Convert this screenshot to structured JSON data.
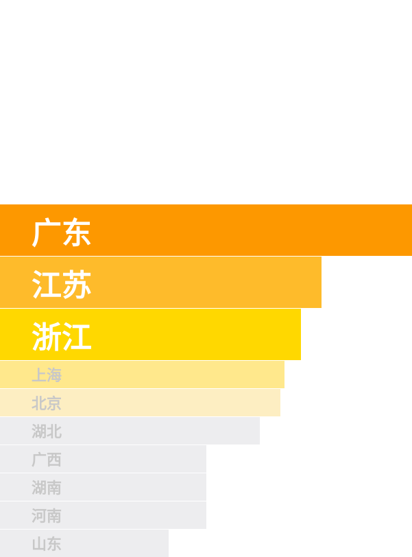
{
  "chart_data": {
    "type": "bar",
    "orientation": "horizontal",
    "categories": [
      "广东",
      "江苏",
      "浙江",
      "上海",
      "北京",
      "湖北",
      "广西",
      "湖南",
      "河南",
      "山东"
    ],
    "values": [
      100,
      78,
      73,
      69,
      68,
      63,
      50,
      50,
      50,
      41
    ],
    "xlim": [
      0,
      100
    ],
    "title": "",
    "xlabel": "",
    "ylabel": "",
    "grid": false,
    "legend": "none",
    "colors": [
      "#fd9800",
      "#febb2b",
      "#ffd800",
      "#ffe88c",
      "#fdeec2",
      "#ededef",
      "#ededef",
      "#ededef",
      "#ededef",
      "#ededef"
    ],
    "emphasized_count": 3
  }
}
